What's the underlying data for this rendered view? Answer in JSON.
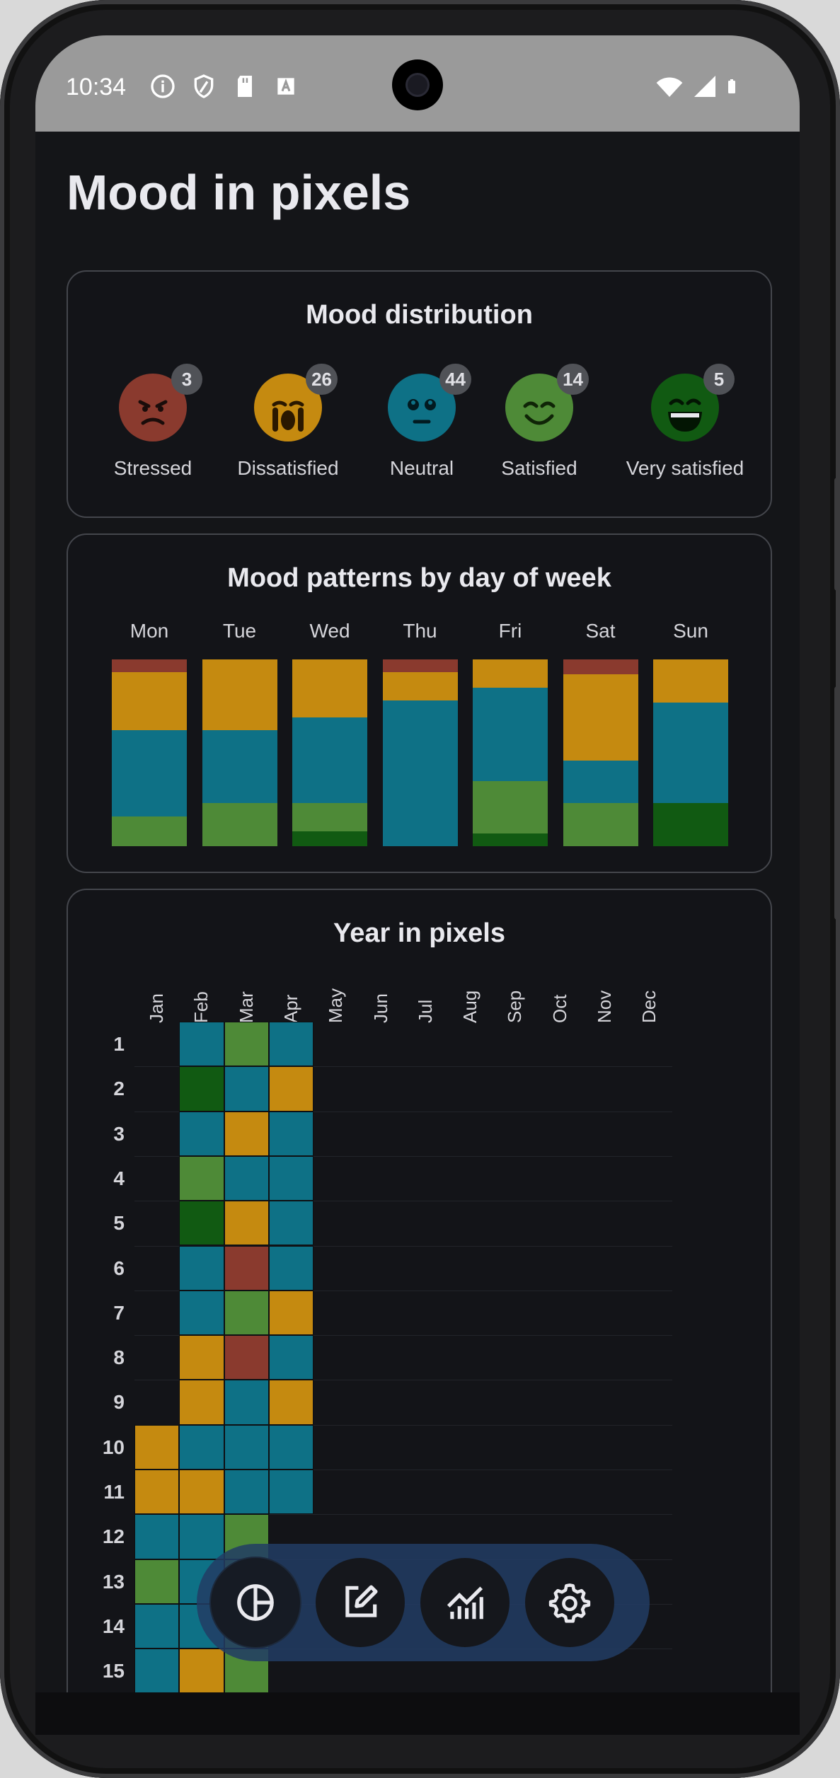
{
  "status_bar": {
    "time": "10:34",
    "icons": [
      "info-icon",
      "shield-icon",
      "sd-card-icon",
      "font-a-icon",
      "wifi-icon",
      "signal-icon",
      "battery-icon"
    ]
  },
  "page_title": "Mood in pixels",
  "colors": {
    "stressed": "#8a3a2e",
    "dissatisfied": "#c58a10",
    "neutral": "#0e7186",
    "satisfied": "#4e8a37",
    "very_satisfied": "#115a12"
  },
  "mood_distribution": {
    "title": "Mood distribution",
    "items": [
      {
        "label": "Stressed",
        "count": "3",
        "icon": "angry-face-icon"
      },
      {
        "label": "Dissatisfied",
        "count": "26",
        "icon": "crying-face-icon"
      },
      {
        "label": "Neutral",
        "count": "44",
        "icon": "neutral-face-icon"
      },
      {
        "label": "Satisfied",
        "count": "14",
        "icon": "smiling-face-icon"
      },
      {
        "label": "Very satisfied",
        "count": "5",
        "icon": "grinning-face-icon"
      }
    ]
  },
  "chart_data": {
    "type": "bar",
    "title": "Mood patterns by day of week",
    "stacked": true,
    "normalized": true,
    "categories": [
      "Mon",
      "Tue",
      "Wed",
      "Thu",
      "Fri",
      "Sat",
      "Sun"
    ],
    "series": [
      {
        "name": "Stressed",
        "values": [
          0.07,
          0.0,
          0.0,
          0.07,
          0.0,
          0.08,
          0.0
        ]
      },
      {
        "name": "Dissatisfied",
        "values": [
          0.31,
          0.38,
          0.31,
          0.15,
          0.15,
          0.46,
          0.23
        ]
      },
      {
        "name": "Neutral",
        "values": [
          0.46,
          0.39,
          0.46,
          0.78,
          0.5,
          0.23,
          0.54
        ]
      },
      {
        "name": "Satisfied",
        "values": [
          0.16,
          0.23,
          0.15,
          0.0,
          0.28,
          0.23,
          0.0
        ]
      },
      {
        "name": "Very satisfied",
        "values": [
          0.0,
          0.0,
          0.08,
          0.0,
          0.07,
          0.0,
          0.23
        ]
      }
    ]
  },
  "year_in_pixels": {
    "title": "Year in pixels",
    "months": [
      "Jan",
      "Feb",
      "Mar",
      "Apr",
      "May",
      "Jun",
      "Jul",
      "Aug",
      "Sep",
      "Oct",
      "Nov",
      "Dec"
    ],
    "days": [
      "1",
      "2",
      "3",
      "4",
      "5",
      "6",
      "7",
      "8",
      "9",
      "10",
      "11",
      "12",
      "13",
      "14",
      "15"
    ],
    "moods_by_month": [
      [
        null,
        null,
        null,
        null,
        null,
        null,
        null,
        null,
        null,
        "dissatisfied",
        "dissatisfied",
        "neutral",
        "satisfied",
        "neutral",
        "neutral"
      ],
      [
        "neutral",
        "very_satisfied",
        "neutral",
        "satisfied",
        "very_satisfied",
        "neutral",
        "neutral",
        "dissatisfied",
        "dissatisfied",
        "neutral",
        "dissatisfied",
        "neutral",
        "neutral",
        "neutral",
        "dissatisfied"
      ],
      [
        "satisfied",
        "neutral",
        "dissatisfied",
        "neutral",
        "dissatisfied",
        "stressed",
        "satisfied",
        "stressed",
        "neutral",
        "neutral",
        "neutral",
        "satisfied",
        "satisfied",
        "satisfied",
        "satisfied"
      ],
      [
        "neutral",
        "dissatisfied",
        "neutral",
        "neutral",
        "neutral",
        "neutral",
        "dissatisfied",
        "neutral",
        "dissatisfied",
        "neutral",
        "neutral",
        null,
        null,
        null,
        null
      ]
    ]
  },
  "nav": {
    "items": [
      {
        "name": "statistics",
        "icon": "pie-chart-icon",
        "active": true
      },
      {
        "name": "edit",
        "icon": "edit-note-icon",
        "active": false
      },
      {
        "name": "trends",
        "icon": "line-chart-icon",
        "active": false
      },
      {
        "name": "settings",
        "icon": "gear-icon",
        "active": false
      }
    ]
  }
}
